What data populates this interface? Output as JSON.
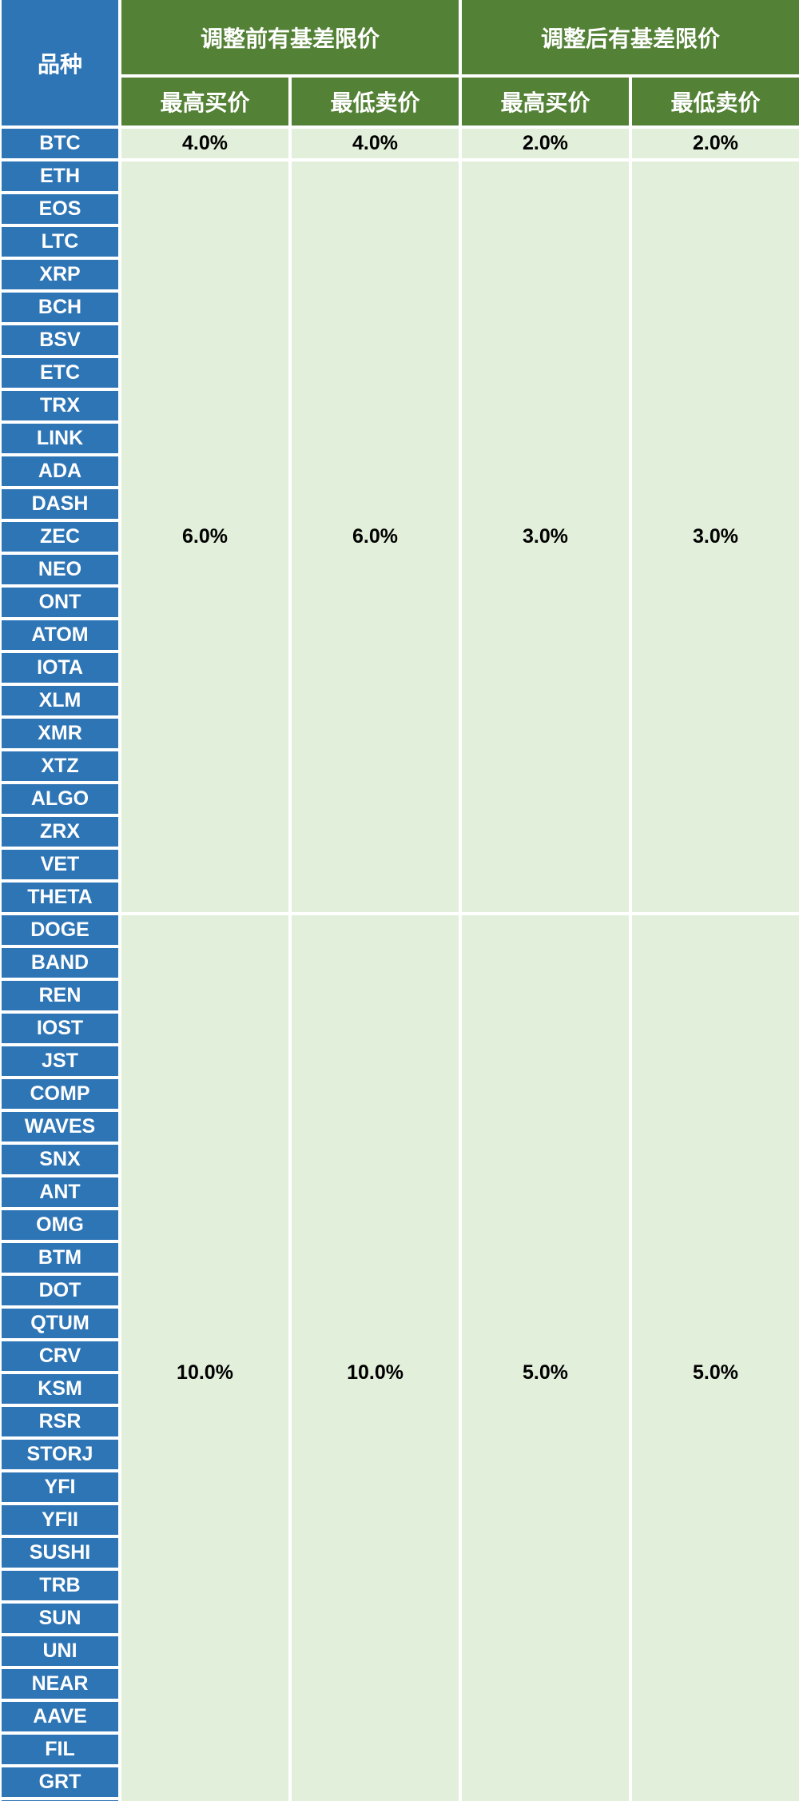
{
  "chart_data": {
    "type": "table",
    "corner_header": "品种",
    "group_headers": [
      "调整前有基差限价",
      "调整后有基差限价"
    ],
    "sub_headers": [
      "最高买价",
      "最低卖价",
      "最高买价",
      "最低卖价"
    ],
    "groups": [
      {
        "symbols": [
          "BTC"
        ],
        "values": [
          "4.0%",
          "4.0%",
          "2.0%",
          "2.0%"
        ]
      },
      {
        "symbols": [
          "ETH",
          "EOS",
          "LTC",
          "XRP",
          "BCH",
          "BSV",
          "ETC",
          "TRX",
          "LINK",
          "ADA",
          "DASH",
          "ZEC",
          "NEO",
          "ONT",
          "ATOM",
          "IOTA",
          "XLM",
          "XMR",
          "XTZ",
          "ALGO",
          "ZRX",
          "VET",
          "THETA"
        ],
        "values": [
          "6.0%",
          "6.0%",
          "3.0%",
          "3.0%"
        ]
      },
      {
        "symbols": [
          "DOGE",
          "BAND",
          "REN",
          "IOST",
          "JST",
          "COMP",
          "WAVES",
          "SNX",
          "ANT",
          "OMG",
          "BTM",
          "DOT",
          "QTUM",
          "CRV",
          "KSM",
          "RSR",
          "STORJ",
          "YFI",
          "YFII",
          "SUSHI",
          "TRB",
          "SUN",
          "UNI",
          "NEAR",
          "AAVE",
          "FIL",
          "GRT"
        ],
        "values": [
          "10.0%",
          "10.0%",
          "5.0%",
          "5.0%"
        ]
      }
    ]
  },
  "colors": {
    "label_blue": "#2E75B6",
    "header_green": "#538135",
    "cell_light_green": "#E2EFDA",
    "grid_white": "#FFFFFF",
    "value_text": "#000000"
  }
}
